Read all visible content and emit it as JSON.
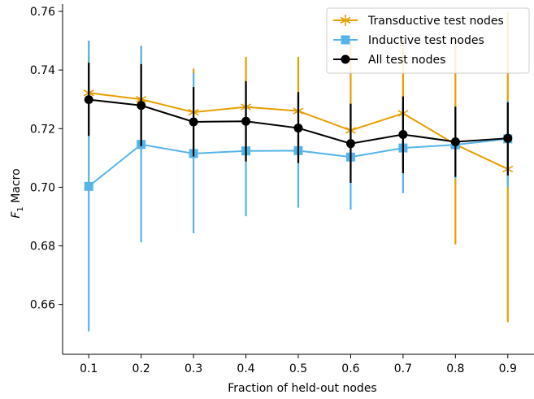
{
  "chart_data": {
    "type": "line",
    "xlabel": "Fraction of held-out nodes",
    "ylabel_main": "F",
    "ylabel_sub": "1",
    "ylabel_rest": " Macro",
    "xlim": [
      0.05,
      0.95
    ],
    "ylim": [
      0.643,
      0.7625
    ],
    "x_ticks": [
      "0.1",
      "0.2",
      "0.3",
      "0.4",
      "0.5",
      "0.6",
      "0.7",
      "0.8",
      "0.9"
    ],
    "y_ticks": [
      "0.66",
      "0.68",
      "0.70",
      "0.72",
      "0.74",
      "0.76"
    ],
    "grid": false,
    "legend_position": "top-right",
    "x": [
      0.1,
      0.2,
      0.3,
      0.4,
      0.5,
      0.6,
      0.7,
      0.8,
      0.9
    ],
    "series": [
      {
        "name": "Transductive test nodes",
        "color": "#E69F00",
        "marker": "star",
        "values": [
          0.7322,
          0.73,
          0.7256,
          0.7274,
          0.726,
          0.7194,
          0.7252,
          0.7146,
          0.7062
        ],
        "err_low": [
          0.7022,
          0.7115,
          0.711,
          0.7085,
          0.708,
          0.706,
          0.7055,
          0.6805,
          0.654
        ],
        "err_high": [
          0.75,
          0.7483,
          0.7405,
          0.7445,
          0.7445,
          0.75,
          0.75,
          0.75,
          0.76
        ]
      },
      {
        "name": "Inductive test nodes",
        "color": "#56B4E9",
        "marker": "square",
        "values": [
          0.7003,
          0.7146,
          0.7115,
          0.7124,
          0.7125,
          0.7103,
          0.7134,
          0.7145,
          0.7165
        ],
        "err_low": [
          0.6508,
          0.6812,
          0.6843,
          0.6901,
          0.693,
          0.6924,
          0.698,
          0.703,
          0.7
        ],
        "err_high": [
          0.75,
          0.7482,
          0.739,
          0.7345,
          0.732,
          0.7282,
          0.729,
          0.7265,
          0.7295
        ]
      },
      {
        "name": "All test nodes",
        "color": "#000000",
        "marker": "circle",
        "values": [
          0.7299,
          0.7279,
          0.7223,
          0.7225,
          0.7202,
          0.7149,
          0.718,
          0.7155,
          0.7167
        ],
        "err_low": [
          0.7175,
          0.714,
          0.7105,
          0.7088,
          0.7083,
          0.7015,
          0.7048,
          0.7035,
          0.704
        ],
        "err_high": [
          0.7425,
          0.742,
          0.7342,
          0.7362,
          0.7325,
          0.7285,
          0.731,
          0.7275,
          0.729
        ]
      }
    ]
  }
}
